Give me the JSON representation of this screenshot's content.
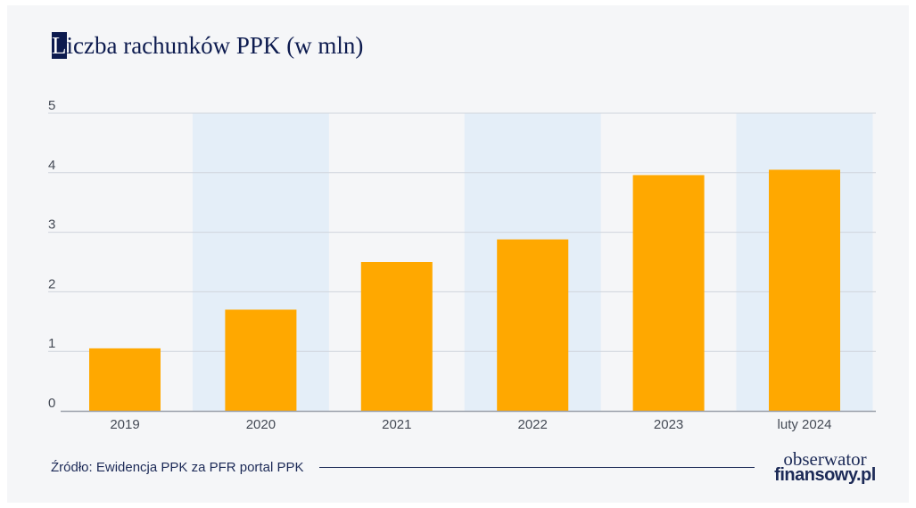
{
  "title": "Liczba rachunków PPK (w mln)",
  "title_first_letter": "L",
  "title_rest": "iczba rachunków PPK (w mln)",
  "source": "Źródło: Ewidencja PPK za PFR portal PPK",
  "logo": {
    "line1": "obserwator",
    "line2": "finansowy.pl"
  },
  "colors": {
    "bar": "#ffa800",
    "band": "#e4eef8",
    "grid": "#cfd4dc",
    "axis": "#9aa0aa",
    "text": "#444a55",
    "navy": "#0d1b4f"
  },
  "chart_data": {
    "type": "bar",
    "title": "Liczba rachunków PPK (w mln)",
    "categories": [
      "2019",
      "2020",
      "2021",
      "2022",
      "2023",
      "luty 2024"
    ],
    "values": [
      1.05,
      1.7,
      2.5,
      2.88,
      3.96,
      4.05
    ],
    "yticks": [
      0,
      1,
      2,
      3,
      4,
      5
    ],
    "ylim": [
      0,
      5
    ],
    "grid": true,
    "shaded_categories": [
      "2020",
      "2022",
      "luty 2024"
    ]
  }
}
